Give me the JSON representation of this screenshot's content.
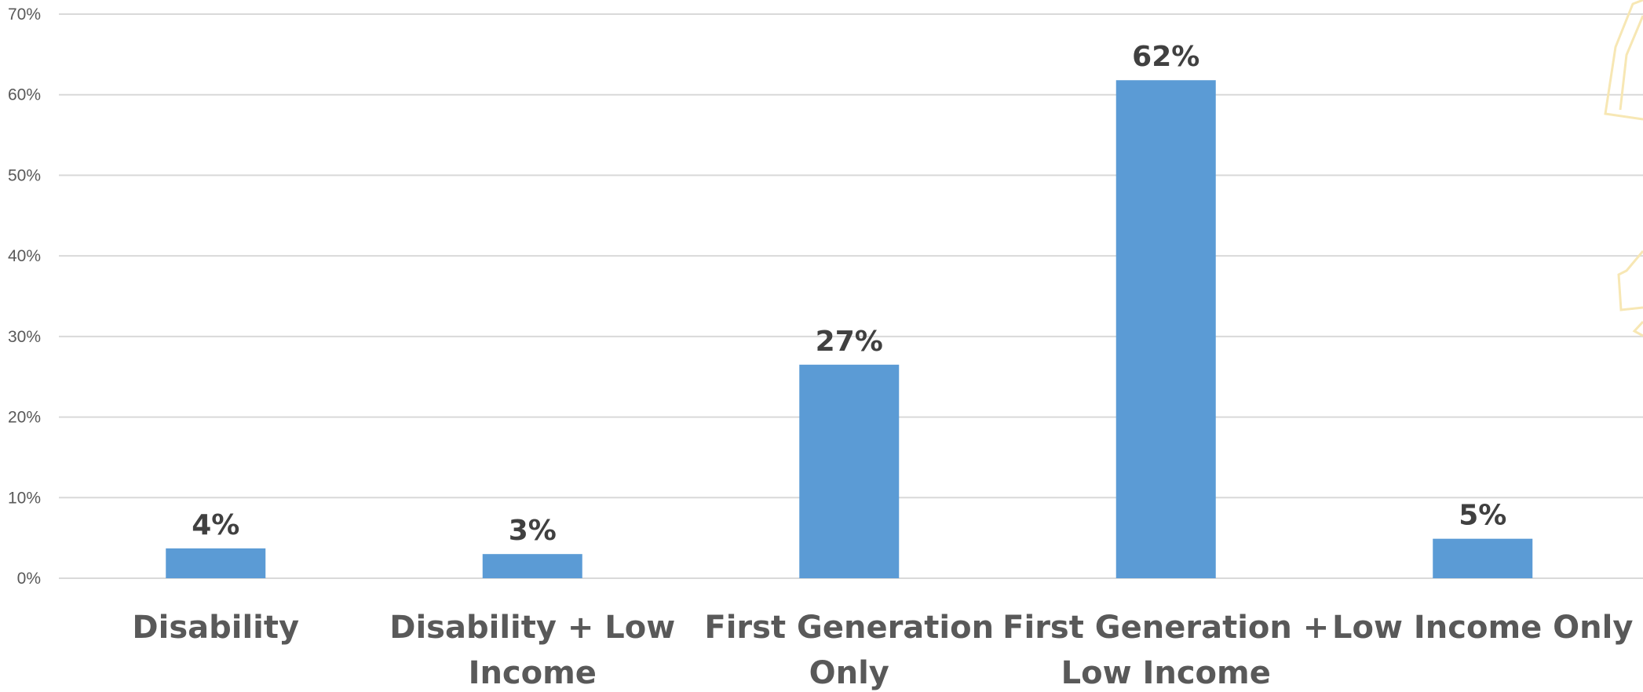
{
  "chart_data": {
    "type": "bar",
    "title": "",
    "xlabel": "",
    "ylabel": "",
    "categories": [
      [
        "Disability"
      ],
      [
        "Disability + Low",
        "Income"
      ],
      [
        "First Generation",
        "Only"
      ],
      [
        "First Generation +",
        "Low Income"
      ],
      [
        "Low Income Only"
      ]
    ],
    "values": [
      3.7,
      3.0,
      26.5,
      61.8,
      4.9
    ],
    "data_labels": [
      "4%",
      "3%",
      "27%",
      "62%",
      "5%"
    ],
    "ylim": [
      0,
      70
    ],
    "yticks": [
      0,
      10,
      20,
      30,
      40,
      50,
      60,
      70
    ],
    "ytick_labels": [
      "0%",
      "10%",
      "20%",
      "30%",
      "40%",
      "50%",
      "60%",
      "70%"
    ],
    "grid": true,
    "legend": "none",
    "colors": {
      "bar": "#5b9bd5",
      "grid": "#d9d9d9",
      "data_label": "#404040",
      "category_label": "#595959",
      "tick_label": "#595959",
      "decoration": "#f7e7b4"
    }
  }
}
